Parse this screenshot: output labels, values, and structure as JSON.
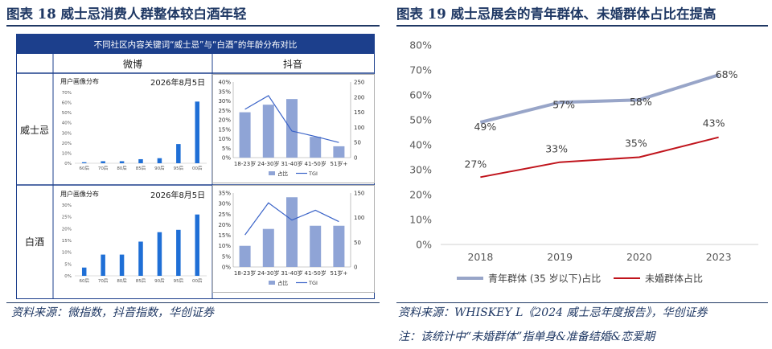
{
  "left": {
    "title": "图表 18   威士忌消费人群整体较白酒年轻",
    "table_header": "不同社区内容关键词“威士忌”与“白酒”的年龄分布对比",
    "col_headers": [
      "微博",
      "抖音"
    ],
    "row_headers": [
      "威士忌",
      "白酒"
    ],
    "source": "资料来源：微指数，抖音指数，华创证券"
  },
  "right": {
    "title": "图表 19  威士忌展会的青年群体、未婚群体占比在提高",
    "source": "资料来源：WHISKEY L《2024 威士忌年度报告》，华创证券",
    "note": "注：该统计中“未婚群体”指单身&准备结婚&恋爱期"
  },
  "colors": {
    "navy": "#1f3864",
    "header_blue": "#1c3f8c",
    "bar_blue": "#1f6fd6",
    "douyin_bar": "#8fa4d6",
    "youth_line": "#98a5c8",
    "unmarried_line": "#c0141c"
  },
  "chart_data": [
    {
      "id": "weibo_whiskey",
      "type": "bar",
      "title": "用户画像分布",
      "date": "2026年8月5日",
      "categories": [
        "60后",
        "70后",
        "80后",
        "85后",
        "90后",
        "95后",
        "00后"
      ],
      "values": [
        1,
        2,
        2,
        4,
        5,
        19,
        61
      ],
      "ylim": [
        0,
        70
      ],
      "yticks": [
        "0%",
        "10%",
        "20%",
        "30%",
        "40%",
        "50%",
        "60%",
        "70%"
      ]
    },
    {
      "id": "douyin_whiskey",
      "type": "bar+line",
      "categories": [
        "18-23岁",
        "24-30岁",
        "31-40岁",
        "41-50岁",
        "51岁+"
      ],
      "series": [
        {
          "name": "占比",
          "type": "bar",
          "axis": "left",
          "values": [
            24,
            28,
            31,
            11,
            6
          ]
        },
        {
          "name": "TGI",
          "type": "line",
          "axis": "right",
          "values": [
            160,
            205,
            88,
            70,
            50
          ]
        }
      ],
      "ylim_left": [
        0,
        40
      ],
      "yticks_left": [
        "0%",
        "5%",
        "10%",
        "15%",
        "20%",
        "25%",
        "30%",
        "35%",
        "40%"
      ],
      "ylim_right": [
        0,
        250
      ],
      "yticks_right": [
        "0",
        "50",
        "100",
        "150",
        "200",
        "250"
      ]
    },
    {
      "id": "weibo_baijiu",
      "type": "bar",
      "title": "用户画像分布",
      "date": "2026年8月5日",
      "categories": [
        "60后",
        "70后",
        "80后",
        "85后",
        "90后",
        "95后",
        "00后"
      ],
      "values": [
        3.5,
        9,
        9,
        14.5,
        18.5,
        19.5,
        26
      ],
      "ylim": [
        0,
        30
      ],
      "yticks": [
        "0%",
        "5%",
        "10%",
        "15%",
        "20%",
        "25%",
        "30%"
      ]
    },
    {
      "id": "douyin_baijiu",
      "type": "bar+line",
      "categories": [
        "18-23岁",
        "24-30岁",
        "31-40岁",
        "41-50岁",
        "51岁+"
      ],
      "series": [
        {
          "name": "占比",
          "type": "bar",
          "axis": "left",
          "values": [
            10,
            18,
            33,
            19.5,
            19.5
          ]
        },
        {
          "name": "TGI",
          "type": "line",
          "axis": "right",
          "values": [
            65,
            130,
            95,
            115,
            92
          ]
        }
      ],
      "ylim_left": [
        0,
        35
      ],
      "yticks_left": [
        "0%",
        "5%",
        "10%",
        "15%",
        "20%",
        "25%",
        "30%",
        "35%"
      ],
      "ylim_right": [
        0,
        150
      ],
      "yticks_right": [
        "0",
        "50",
        "100",
        "150"
      ]
    },
    {
      "id": "expo_share",
      "type": "line",
      "categories": [
        "2018",
        "2019",
        "2020",
        "2023"
      ],
      "series": [
        {
          "name": "青年群体 (35 岁以下)占比",
          "values": [
            49,
            57,
            58,
            68
          ],
          "labels": [
            "49%",
            "57%",
            "58%",
            "68%"
          ]
        },
        {
          "name": "未婚群体占比",
          "values": [
            27,
            33,
            35,
            43
          ],
          "labels": [
            "27%",
            "33%",
            "35%",
            "43%"
          ]
        }
      ],
      "ylim": [
        0,
        80
      ],
      "yticks": [
        "0%",
        "10%",
        "20%",
        "30%",
        "40%",
        "50%",
        "60%",
        "70%",
        "80%"
      ],
      "grid": false,
      "legend": "bottom"
    }
  ]
}
